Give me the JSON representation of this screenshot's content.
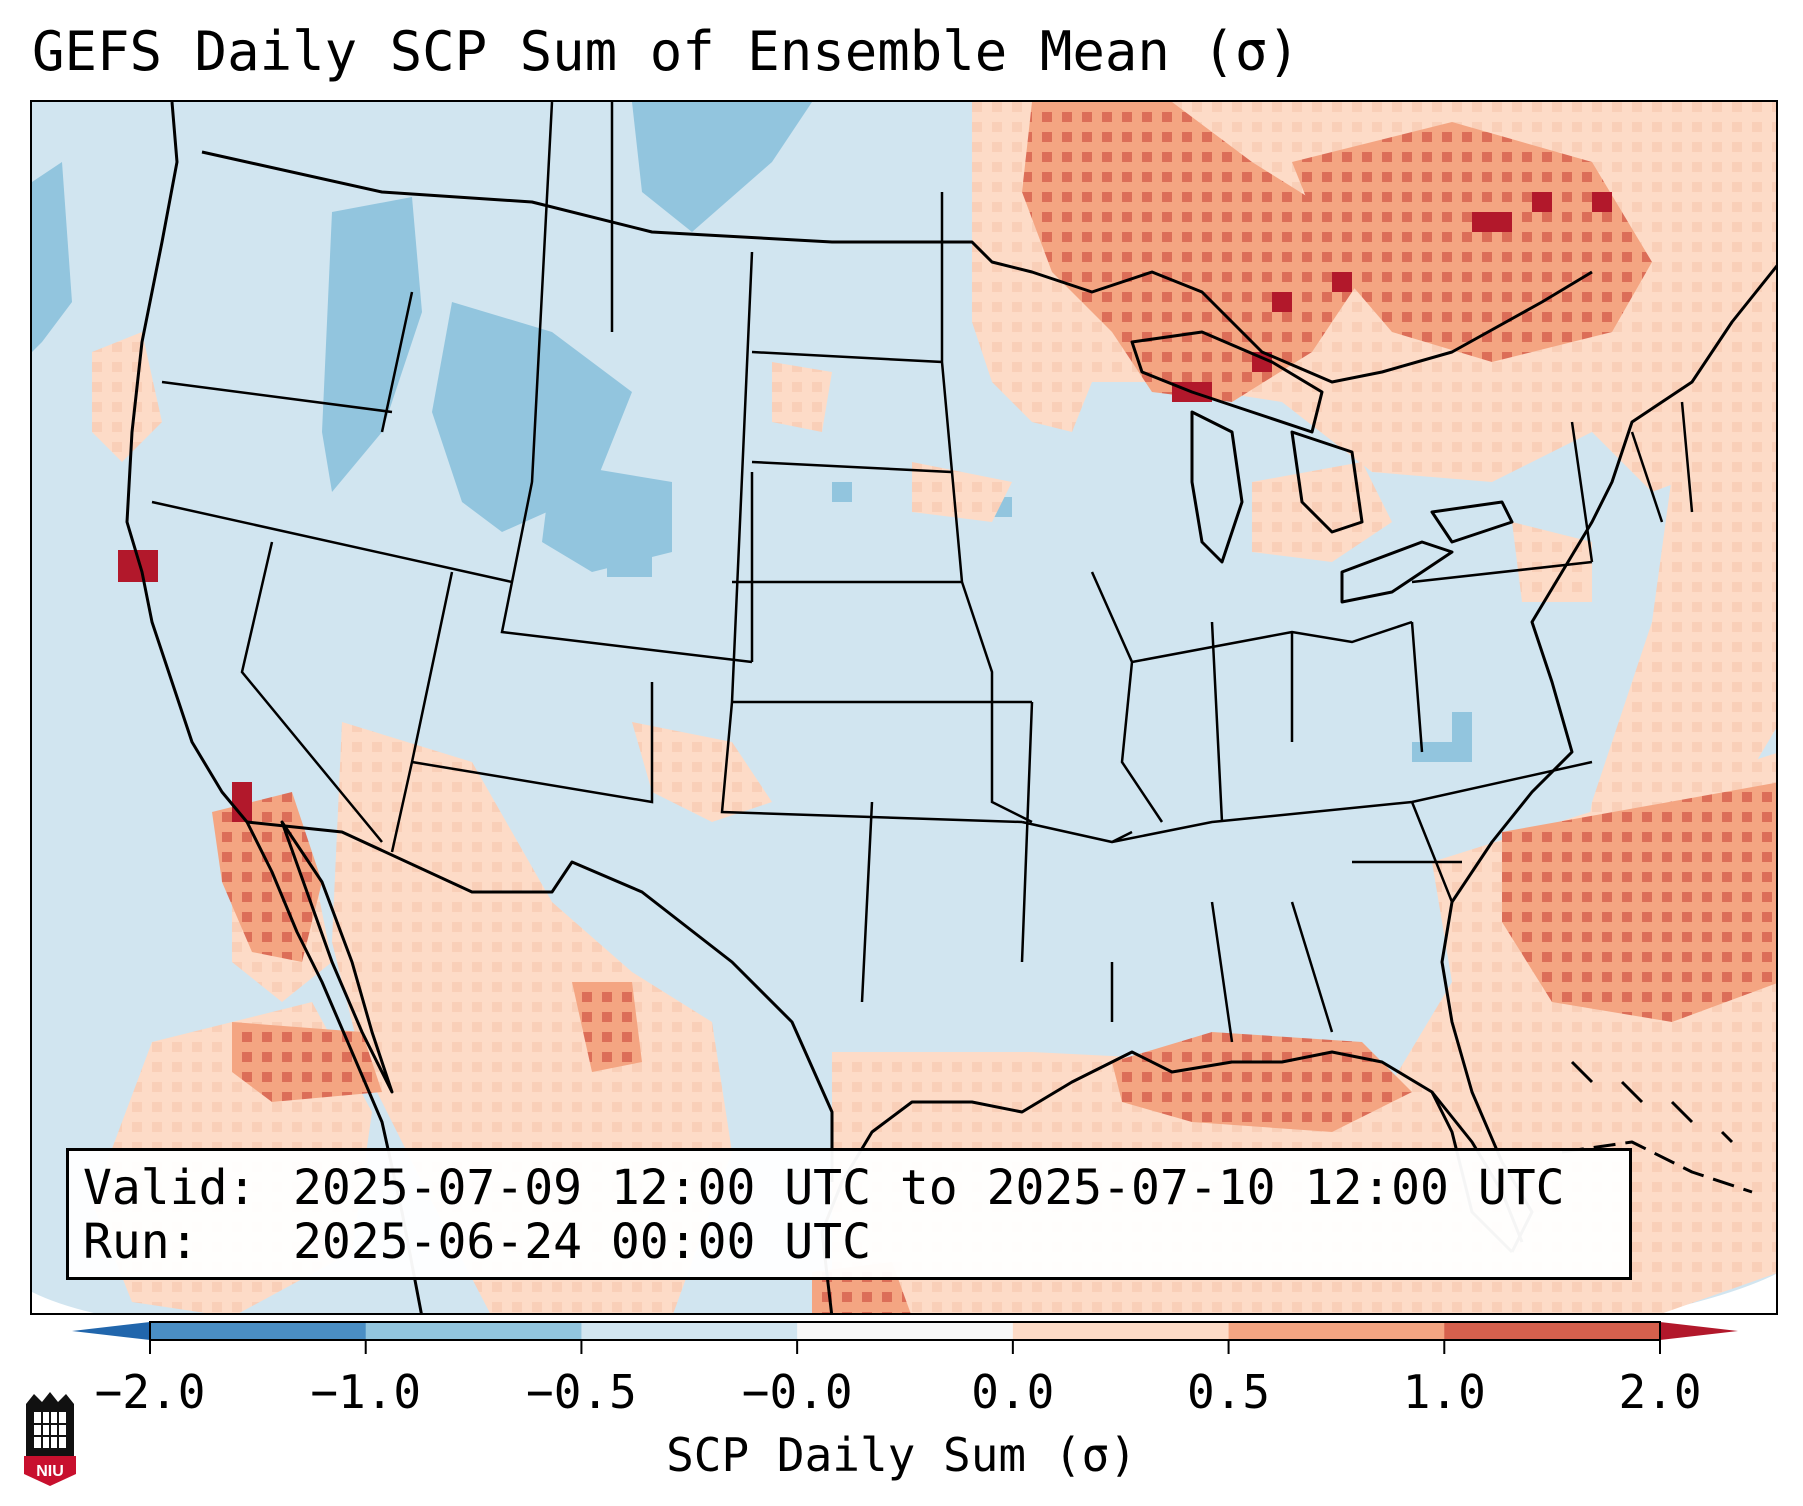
{
  "title": "GEFS Daily SCP Sum of Ensemble Mean (σ)",
  "info": {
    "valid_label": "Valid:",
    "valid_value": "2025-07-09 12:00 UTC to 2025-07-10 12:00 UTC",
    "run_label": "Run:",
    "run_value": "2025-06-24 00:00 UTC"
  },
  "colorbar": {
    "label": "SCP Daily Sum (σ)",
    "ticks": [
      "−2.0",
      "−1.0",
      "−0.5",
      "−0.0",
      "0.0",
      "0.5",
      "1.0",
      "2.0"
    ],
    "bin_colors": [
      "#4a8ec4",
      "#92c5de",
      "#d1e5f0",
      "#f7f7f7",
      "#fddbc7",
      "#f4a582",
      "#d6604d"
    ],
    "extend_low_color": "#2166ac",
    "extend_high_color": "#b2182b"
  },
  "map": {
    "background_color": "#d1e5f0",
    "offmap_color": "#ffffff"
  },
  "logo": {
    "text": "NIU"
  }
}
